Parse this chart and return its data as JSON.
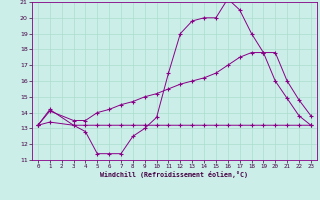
{
  "xlabel": "Windchill (Refroidissement éolien,°C)",
  "background_color": "#cceee8",
  "grid_color": "#aaddcc",
  "line_color": "#880088",
  "xlim": [
    -0.5,
    23.5
  ],
  "ylim": [
    11,
    21
  ],
  "yticks": [
    11,
    12,
    13,
    14,
    15,
    16,
    17,
    18,
    19,
    20,
    21
  ],
  "xticks": [
    0,
    1,
    2,
    3,
    4,
    5,
    6,
    7,
    8,
    9,
    10,
    11,
    12,
    13,
    14,
    15,
    16,
    17,
    18,
    19,
    20,
    21,
    22,
    23
  ],
  "line1_x": [
    0,
    1,
    3,
    4,
    5,
    6,
    7,
    8,
    9,
    10,
    11,
    12,
    13,
    14,
    15,
    16,
    17,
    18,
    19,
    20,
    21,
    22,
    23
  ],
  "line1_y": [
    13.2,
    14.2,
    13.2,
    12.8,
    11.4,
    11.4,
    11.4,
    12.5,
    13.0,
    13.7,
    16.5,
    19.0,
    19.8,
    20.0,
    20.0,
    21.2,
    20.5,
    19.0,
    17.8,
    16.0,
    14.9,
    13.8,
    13.2
  ],
  "line2_x": [
    0,
    1,
    3,
    4,
    5,
    6,
    7,
    8,
    9,
    10,
    11,
    12,
    13,
    14,
    15,
    16,
    17,
    18,
    19,
    20,
    21,
    22,
    23
  ],
  "line2_y": [
    13.2,
    14.1,
    13.5,
    13.5,
    14.0,
    14.2,
    14.5,
    14.7,
    15.0,
    15.2,
    15.5,
    15.8,
    16.0,
    16.2,
    16.5,
    17.0,
    17.5,
    17.8,
    17.8,
    17.8,
    16.0,
    14.8,
    13.8
  ],
  "line3_x": [
    0,
    1,
    3,
    4,
    5,
    6,
    7,
    8,
    9,
    10,
    11,
    12,
    13,
    14,
    15,
    16,
    17,
    18,
    19,
    20,
    21,
    22,
    23
  ],
  "line3_y": [
    13.2,
    13.4,
    13.2,
    13.2,
    13.2,
    13.2,
    13.2,
    13.2,
    13.2,
    13.2,
    13.2,
    13.2,
    13.2,
    13.2,
    13.2,
    13.2,
    13.2,
    13.2,
    13.2,
    13.2,
    13.2,
    13.2,
    13.2
  ]
}
